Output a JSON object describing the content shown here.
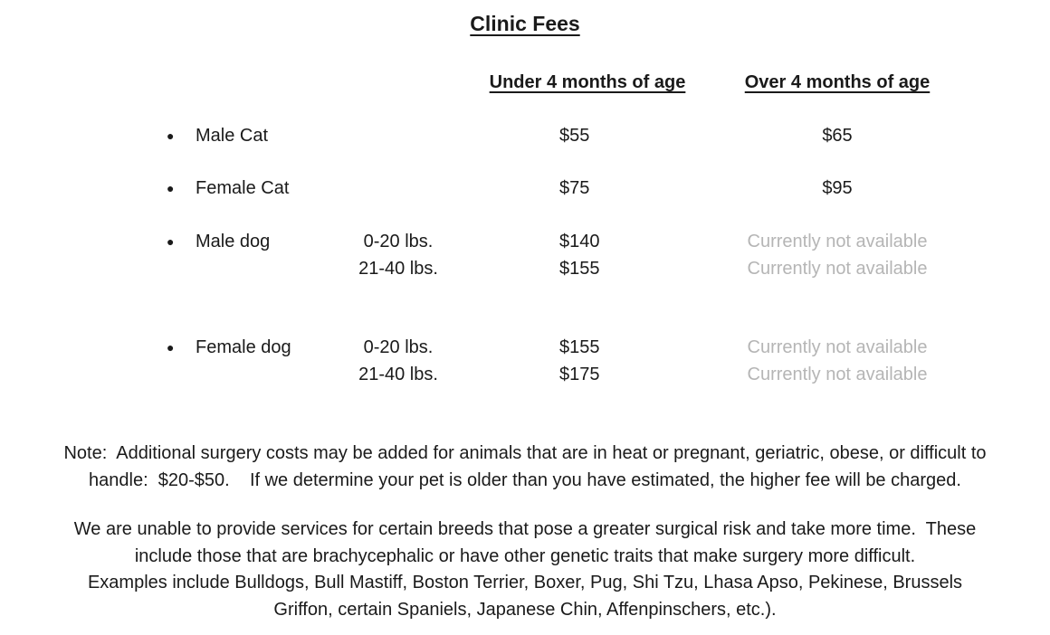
{
  "document": {
    "title": "Clinic Fees",
    "table": {
      "bullet_icon": "●",
      "header_under": "Under 4 months of age",
      "header_over": "Over 4 months of age",
      "rows": [
        {
          "label": "Male Cat",
          "weight": "",
          "under": "$55",
          "over": "$65"
        },
        {
          "label": "Female Cat",
          "weight": "",
          "under": "$75",
          "over": "$95"
        },
        {
          "label": "Male dog",
          "weight": "0-20 lbs.",
          "under": "$140",
          "over": "Currently not available"
        },
        {
          "label": "",
          "weight": "21-40 lbs.",
          "under": "$155",
          "over": "Currently not available"
        },
        {
          "label": "Female dog",
          "weight": "0-20 lbs.",
          "under": "$155",
          "over": "Currently not available"
        },
        {
          "label": "",
          "weight": "21-40 lbs.",
          "under": "$175",
          "over": "Currently not available"
        }
      ]
    },
    "note": {
      "lines": [
        "Note:  Additional surgery costs may be added for animals that are in heat or pregnant, geriatric, obese, or difficult to",
        "handle:  $20-$50.    If we determine your pet is older than you have estimated, the higher fee will be charged."
      ]
    },
    "breeds_paragraph": {
      "lines": [
        "We are unable to provide services for certain breeds that pose a greater surgical risk and take more time.  These",
        "include those that are brachycephalic or have other genetic traits that make surgery more difficult.",
        "Examples include Bulldogs, Bull Mastiff, Boston Terrier, Boxer, Pug, Shi Tzu, Lhasa Apso, Pekinese, Brussels",
        "Griffon, certain Spaniels, Japanese Chin, Affenpinschers, etc.)."
      ]
    },
    "colors": {
      "text": "#1a1a1a",
      "unavailable_gray": "#b5b5b5"
    }
  }
}
